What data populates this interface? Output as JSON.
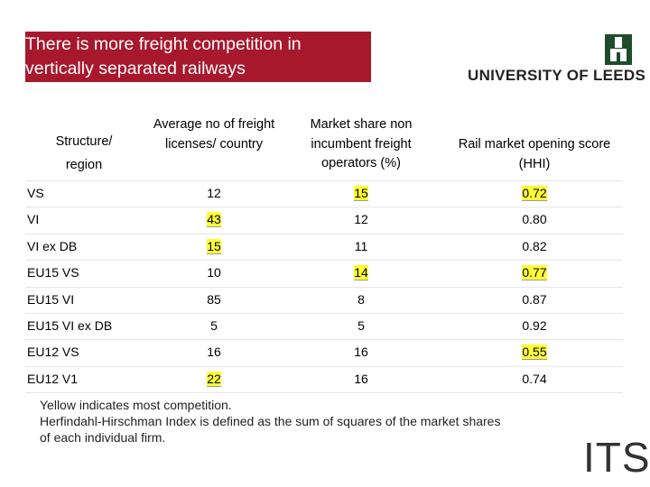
{
  "header": {
    "title_lines": [
      "There is more freight competition in",
      "vertically separated railways"
    ],
    "logo": "UNIVERSITY OF LEEDS",
    "footer_logo": "ITS"
  },
  "table": {
    "columns": [
      [
        "Structure/",
        "region"
      ],
      [
        "Average no of freight licenses/ country"
      ],
      [
        "Market share non incumbent freight operators (%)"
      ],
      [
        "Rail market opening score (HHI)"
      ]
    ],
    "rows": [
      {
        "label": "VS",
        "values": [
          "12",
          "15",
          "0.72"
        ],
        "highlight": [
          false,
          true,
          true
        ]
      },
      {
        "label": "VI",
        "values": [
          "43",
          "12",
          "0.80"
        ],
        "highlight": [
          true,
          false,
          false
        ]
      },
      {
        "label": "VI ex DB",
        "values": [
          "15",
          "11",
          "0.82"
        ],
        "highlight": [
          true,
          false,
          false
        ]
      },
      {
        "label": "EU15 VS",
        "values": [
          "10",
          "14",
          "0.77"
        ],
        "highlight": [
          false,
          true,
          true
        ]
      },
      {
        "label": "EU15 VI",
        "values": [
          "85",
          "8",
          "0.87"
        ],
        "highlight": [
          false,
          false,
          false
        ]
      },
      {
        "label": "EU15 VI ex DB",
        "values": [
          "5",
          "5",
          "0.92"
        ],
        "highlight": [
          false,
          false,
          false
        ]
      },
      {
        "label": "EU12 VS",
        "values": [
          "16",
          "16",
          "0.55"
        ],
        "highlight": [
          false,
          false,
          true
        ]
      },
      {
        "label": "EU12 V1",
        "values": [
          "22",
          "16",
          "0.74"
        ],
        "highlight": [
          true,
          false,
          false
        ]
      }
    ]
  },
  "notes": [
    "Yellow indicates most competition.",
    "Herfindahl-Hirschman Index is defined as the sum of squares of the market shares",
    "of each individual firm."
  ]
}
